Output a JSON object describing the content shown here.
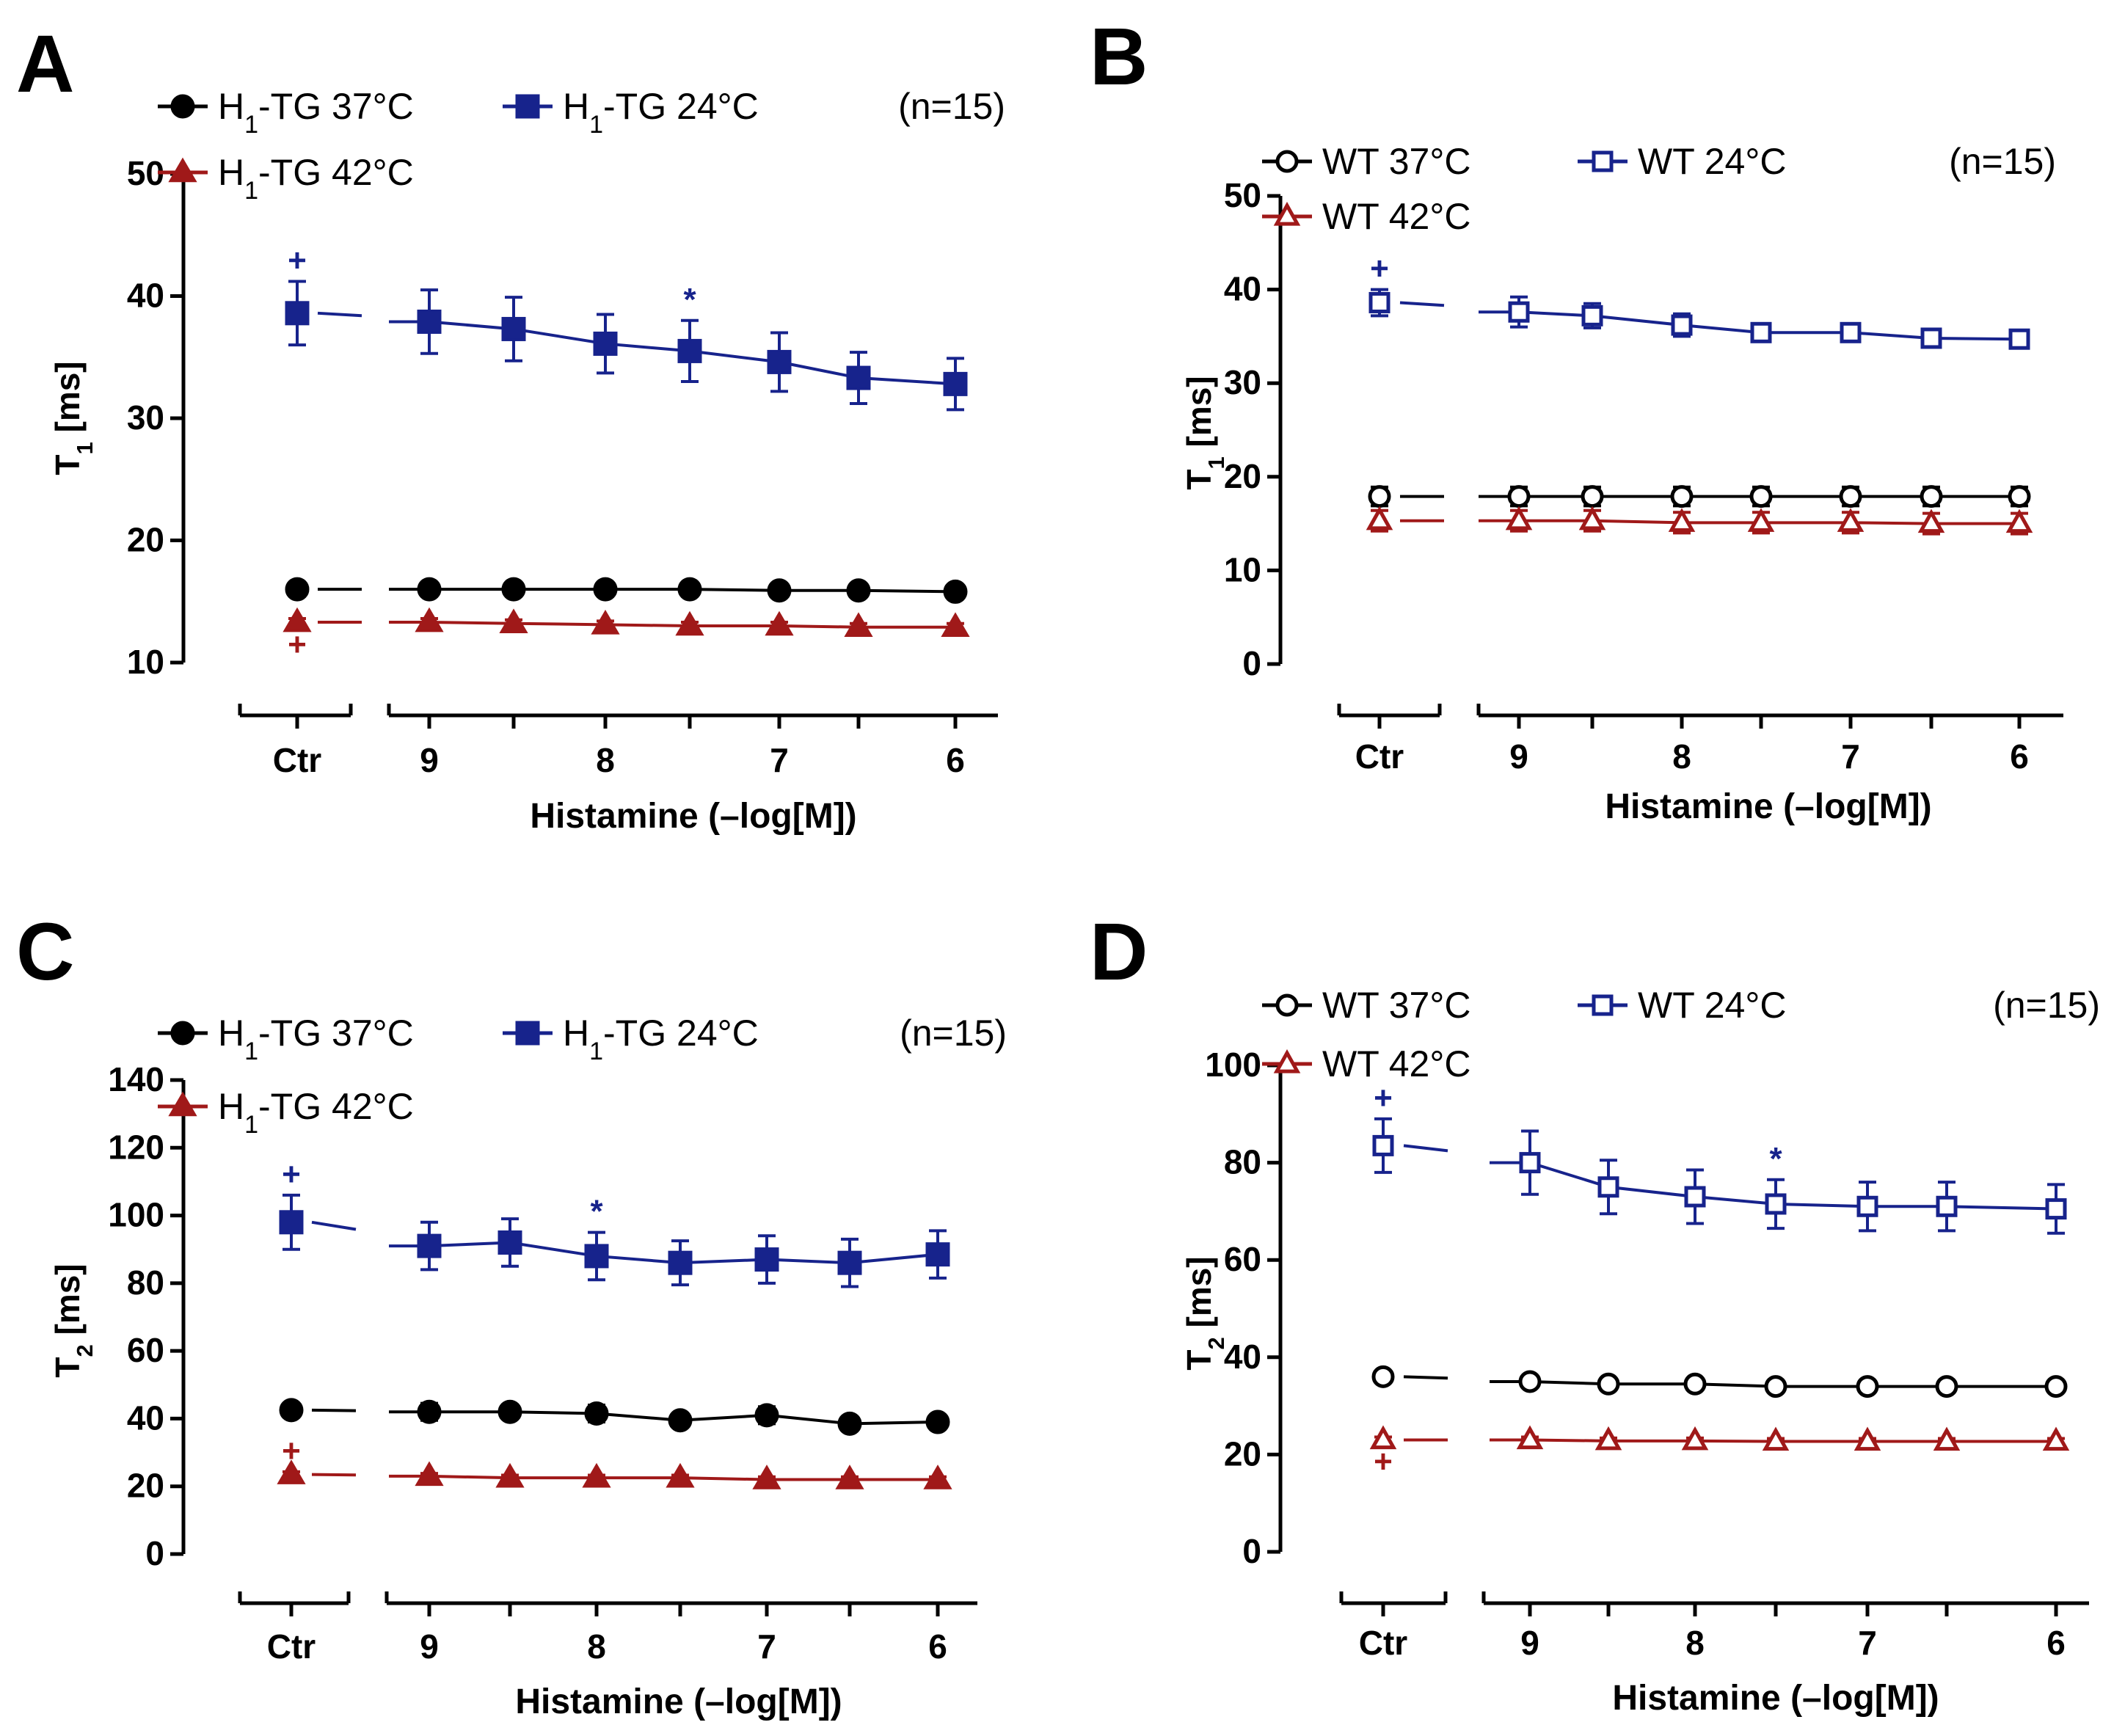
{
  "chart_data": [
    {
      "type": "line",
      "panel_label": "A",
      "x_labels": [
        "Ctr",
        "9",
        "8.5",
        "8",
        "7.5",
        "7",
        "6.5",
        "6"
      ],
      "tick_labels": [
        "Ctr",
        "9",
        "8",
        "7",
        "6"
      ],
      "xlabel": "Histamine (–log[M])",
      "ylabel_main": "T",
      "ylabel_sub": "1",
      "ylabel_unit": " [ms]",
      "ylim": [
        10,
        50
      ],
      "yticks": [
        "10",
        "20",
        "30",
        "40",
        "50"
      ],
      "n_label": "(n=15)",
      "series": [
        {
          "name": "H1-TG 37°C",
          "legend_main": "H",
          "legend_sub": "1",
          "legend_rest": "-TG 37°C",
          "color": "#000000",
          "marker": "circle",
          "filled": true,
          "values": [
            16.0,
            16.0,
            16.0,
            16.0,
            16.0,
            15.9,
            15.9,
            15.8
          ],
          "errors": [
            0.3,
            0.3,
            0.3,
            0.3,
            0.3,
            0.3,
            0.3,
            0.3
          ]
        },
        {
          "name": "H1-TG 24°C",
          "legend_main": "H",
          "legend_sub": "1",
          "legend_rest": "-TG 24°C",
          "color": "#17238c",
          "marker": "square",
          "filled": true,
          "values": [
            38.6,
            37.9,
            37.3,
            36.1,
            35.5,
            34.6,
            33.3,
            32.8
          ],
          "errors": [
            2.6,
            2.6,
            2.6,
            2.4,
            2.5,
            2.4,
            2.1,
            2.1
          ]
        },
        {
          "name": "H1-TG 42°C",
          "legend_main": "H",
          "legend_sub": "1",
          "legend_rest": "-TG 42°C",
          "color": "#a01919",
          "marker": "triangle",
          "filled": true,
          "values": [
            13.3,
            13.3,
            13.2,
            13.1,
            13.0,
            13.0,
            12.9,
            12.9
          ],
          "errors": [
            0.3,
            0.3,
            0.3,
            0.3,
            0.3,
            0.3,
            0.3,
            0.3
          ]
        }
      ],
      "annotations": [
        {
          "text": "+",
          "series": 1,
          "index": 0,
          "position": "above",
          "color": "#17238c"
        },
        {
          "text": "*",
          "series": 1,
          "index": 4,
          "position": "above",
          "color": "#17238c"
        },
        {
          "text": "+",
          "series": 2,
          "index": 0,
          "position": "below",
          "color": "#a01919"
        }
      ]
    },
    {
      "type": "line",
      "panel_label": "B",
      "x_labels": [
        "Ctr",
        "9",
        "8.5",
        "8",
        "7.5",
        "7",
        "6.5",
        "6"
      ],
      "tick_labels": [
        "Ctr",
        "9",
        "8",
        "7",
        "6"
      ],
      "xlabel": "Histamine (–log[M])",
      "ylabel_main": "T",
      "ylabel_sub": "1",
      "ylabel_unit": " [ms]",
      "ylim": [
        0,
        50
      ],
      "yticks": [
        "0",
        "10",
        "20",
        "30",
        "40",
        "50"
      ],
      "n_label": "(n=15)",
      "series": [
        {
          "name": "WT 37°C",
          "legend_main": "WT 37°C",
          "legend_sub": "",
          "legend_rest": "",
          "color": "#000000",
          "marker": "circle",
          "filled": false,
          "values": [
            17.9,
            17.9,
            17.9,
            17.9,
            17.9,
            17.9,
            17.9,
            17.9
          ],
          "errors": [
            1.0,
            1.0,
            1.0,
            1.0,
            1.0,
            1.0,
            1.0,
            1.0
          ]
        },
        {
          "name": "WT 24°C",
          "legend_main": "WT 24°C",
          "legend_sub": "",
          "legend_rest": "",
          "color": "#17238c",
          "marker": "square",
          "filled": false,
          "values": [
            38.6,
            37.6,
            37.2,
            36.2,
            35.4,
            35.4,
            34.8,
            34.7
          ],
          "errors": [
            1.4,
            1.6,
            1.3,
            1.2,
            0.6,
            0.6,
            0.6,
            0.6
          ]
        },
        {
          "name": "WT 42°C",
          "legend_main": "WT 42°C",
          "legend_sub": "",
          "legend_rest": "",
          "color": "#a01919",
          "marker": "triangle",
          "filled": false,
          "values": [
            15.3,
            15.3,
            15.3,
            15.1,
            15.1,
            15.1,
            15.0,
            15.0
          ],
          "errors": [
            1.1,
            1.1,
            1.1,
            1.1,
            1.1,
            1.1,
            1.1,
            1.1
          ]
        }
      ],
      "annotations": [
        {
          "text": "+",
          "series": 1,
          "index": 0,
          "position": "above",
          "color": "#17238c"
        }
      ]
    },
    {
      "type": "line",
      "panel_label": "C",
      "x_labels": [
        "Ctr",
        "9",
        "8.5",
        "8",
        "7.5",
        "7",
        "6.5",
        "6"
      ],
      "tick_labels": [
        "Ctr",
        "9",
        "8",
        "7",
        "6"
      ],
      "xlabel": "Histamine (–log[M])",
      "ylabel_main": "T",
      "ylabel_sub": "2",
      "ylabel_unit": " [ms]",
      "ylim": [
        0,
        140
      ],
      "yticks": [
        "0",
        "20",
        "40",
        "60",
        "80",
        "100",
        "120",
        "140"
      ],
      "n_label": "(n=15)",
      "series": [
        {
          "name": "H1-TG 37°C",
          "legend_main": "H",
          "legend_sub": "1",
          "legend_rest": "-TG 37°C",
          "color": "#000000",
          "marker": "circle",
          "filled": true,
          "values": [
            42.5,
            42.0,
            42.0,
            41.5,
            39.5,
            41.0,
            38.5,
            39.0
          ],
          "errors": [
            1.5,
            2.5,
            1.5,
            2.5,
            1.5,
            2.5,
            1.5,
            1.5
          ]
        },
        {
          "name": "H1-TG 24°C",
          "legend_main": "H",
          "legend_sub": "1",
          "legend_rest": "-TG 24°C",
          "color": "#17238c",
          "marker": "square",
          "filled": true,
          "values": [
            98.0,
            91.0,
            92.0,
            88.0,
            86.0,
            87.0,
            86.0,
            88.5
          ],
          "errors": [
            8.0,
            7.0,
            7.0,
            7.0,
            6.5,
            7.0,
            7.0,
            7.0
          ]
        },
        {
          "name": "H1-TG 42°C",
          "legend_main": "H",
          "legend_sub": "1",
          "legend_rest": "-TG 42°C",
          "color": "#a01919",
          "marker": "triangle",
          "filled": true,
          "values": [
            23.5,
            23.0,
            22.5,
            22.5,
            22.5,
            22.0,
            22.0,
            22.0
          ],
          "errors": [
            0.8,
            0.8,
            0.8,
            0.8,
            0.8,
            0.8,
            0.8,
            0.8
          ]
        }
      ],
      "annotations": [
        {
          "text": "+",
          "series": 1,
          "index": 0,
          "position": "above",
          "color": "#17238c"
        },
        {
          "text": "*",
          "series": 1,
          "index": 3,
          "position": "above",
          "color": "#17238c"
        },
        {
          "text": "+",
          "series": 2,
          "index": 0,
          "position": "above",
          "color": "#a01919"
        }
      ]
    },
    {
      "type": "line",
      "panel_label": "D",
      "x_labels": [
        "Ctr",
        "9",
        "8.5",
        "8",
        "7.5",
        "7",
        "6.5",
        "6"
      ],
      "tick_labels": [
        "Ctr",
        "9",
        "8",
        "7",
        "6"
      ],
      "xlabel": "Histamine (–log[M])",
      "ylabel_main": "T",
      "ylabel_sub": "2",
      "ylabel_unit": " [ms]",
      "ylim": [
        0,
        100
      ],
      "yticks": [
        "0",
        "20",
        "40",
        "60",
        "80",
        "100"
      ],
      "n_label": "(n=15)",
      "series": [
        {
          "name": "WT 37°C",
          "legend_main": "WT 37°C",
          "legend_sub": "",
          "legend_rest": "",
          "color": "#000000",
          "marker": "circle",
          "filled": false,
          "values": [
            36.0,
            35.0,
            34.5,
            34.5,
            34.0,
            34.0,
            34.0,
            34.0
          ],
          "errors": [
            0.8,
            0.8,
            0.8,
            0.8,
            0.8,
            0.8,
            0.8,
            0.8
          ]
        },
        {
          "name": "WT 24°C",
          "legend_main": "WT 24°C",
          "legend_sub": "",
          "legend_rest": "",
          "color": "#17238c",
          "marker": "square",
          "filled": false,
          "values": [
            83.5,
            80.0,
            75.0,
            73.0,
            71.5,
            71.0,
            71.0,
            70.5
          ],
          "errors": [
            5.5,
            6.5,
            5.5,
            5.5,
            5.0,
            5.0,
            5.0,
            5.0
          ]
        },
        {
          "name": "WT 42°C",
          "legend_main": "WT 42°C",
          "legend_sub": "",
          "legend_rest": "",
          "color": "#a01919",
          "marker": "triangle",
          "filled": false,
          "values": [
            23.0,
            23.0,
            22.8,
            22.8,
            22.7,
            22.7,
            22.7,
            22.7
          ],
          "errors": [
            0.6,
            0.6,
            0.6,
            0.6,
            0.6,
            0.6,
            0.6,
            0.6
          ]
        }
      ],
      "annotations": [
        {
          "text": "+",
          "series": 1,
          "index": 0,
          "position": "above",
          "color": "#17238c"
        },
        {
          "text": "*",
          "series": 1,
          "index": 4,
          "position": "above",
          "color": "#17238c"
        },
        {
          "text": "+",
          "series": 2,
          "index": 0,
          "position": "below",
          "color": "#a01919"
        }
      ]
    }
  ]
}
